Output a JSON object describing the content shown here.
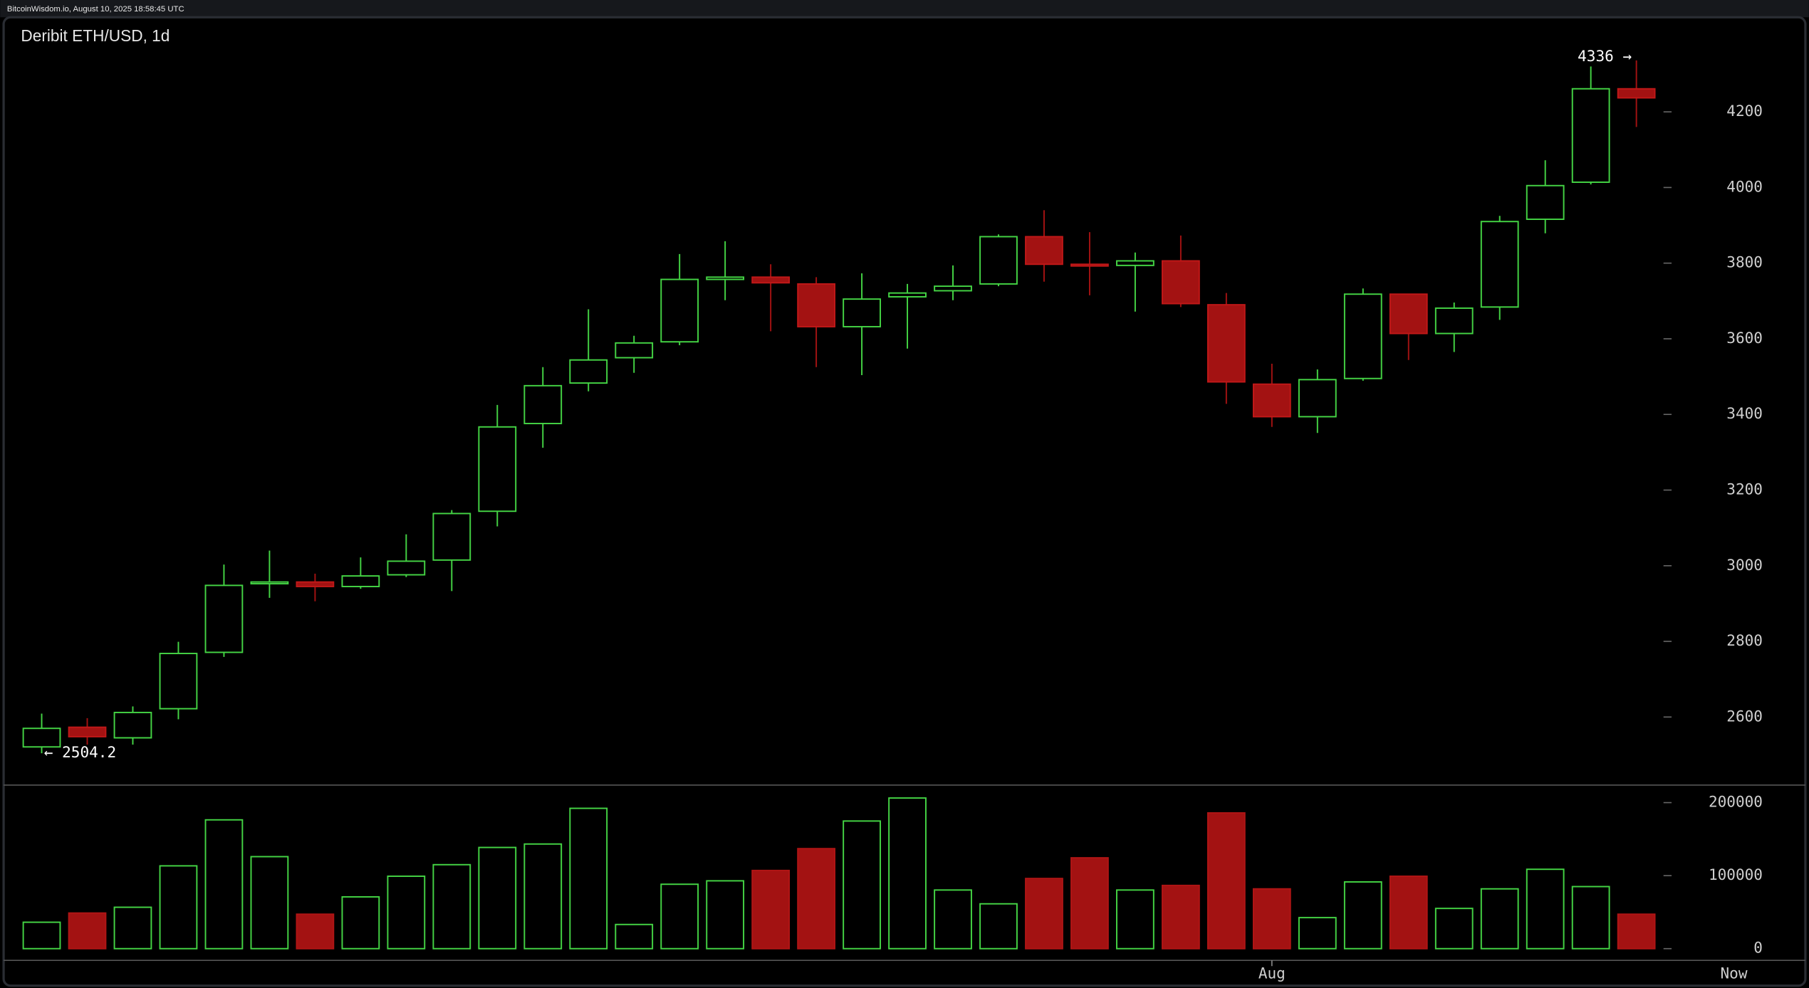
{
  "header": "BitcoinWisdom.io, August 10, 2025 18:58:45 UTC",
  "chart_data": [
    {
      "type": "candlestick",
      "title": "Deribit ETH/USD, 1d",
      "categories": [
        null,
        null,
        null,
        null,
        null,
        null,
        null,
        null,
        null,
        null,
        null,
        null,
        null,
        null,
        null,
        null,
        null,
        null,
        null,
        null,
        null,
        null,
        null,
        null,
        null,
        null,
        null,
        "Aug",
        null,
        null,
        null,
        null,
        null,
        null,
        null,
        null
      ],
      "x_end_label": "Now",
      "open": [
        2521,
        2573,
        2545,
        2622,
        2771,
        2954,
        2957,
        2945,
        2976,
        3015,
        3144,
        3376,
        3483,
        3550,
        3592,
        3757,
        3763,
        3745,
        3632,
        3711,
        3727,
        3745,
        3870,
        3797,
        3794,
        3806,
        3690,
        3480,
        3394,
        3495,
        3718,
        3614,
        3684,
        3916,
        4014,
        4261
      ],
      "high": [
        2609,
        2597,
        2628,
        2799,
        3003,
        3040,
        2979,
        3022,
        3083,
        3147,
        3425,
        3525,
        3678,
        3608,
        3824,
        3858,
        3797,
        3763,
        3773,
        3745,
        3794,
        3876,
        3940,
        3882,
        3828,
        3873,
        3721,
        3534,
        3519,
        3733,
        3718,
        3696,
        3925,
        4072,
        4320,
        4336
      ],
      "low": [
        2504.2,
        2527,
        2527,
        2594,
        2759,
        2915,
        2906,
        2939,
        2970,
        2933,
        3104,
        3312,
        3461,
        3510,
        3583,
        3702,
        3620,
        3525,
        3504,
        3574,
        3702,
        3739,
        3751,
        3715,
        3672,
        3684,
        3428,
        3367,
        3351,
        3489,
        3544,
        3565,
        3650,
        3879,
        4008,
        4160
      ],
      "close": [
        2570,
        2548,
        2612,
        2768,
        2948,
        2957,
        2945,
        2973,
        3012,
        3138,
        3367,
        3476,
        3544,
        3589,
        3757,
        3763,
        3748,
        3632,
        3705,
        3721,
        3739,
        3870,
        3797,
        3794,
        3806,
        3693,
        3486,
        3394,
        3492,
        3718,
        3614,
        3681,
        3910,
        4005,
        4261,
        4237
      ],
      "up_color": "#44d444",
      "down_color": "#a31212",
      "ylim": [
        2420,
        4450
      ],
      "yticks": [
        2600,
        2800,
        3000,
        3200,
        3400,
        3600,
        3800,
        4000,
        4200
      ],
      "annotations": [
        {
          "value": 4336,
          "label": "4336 →"
        },
        {
          "value": 2504.2,
          "label": "← 2504.2"
        }
      ]
    },
    {
      "type": "volume",
      "values": [
        36200,
        48800,
        56700,
        113400,
        176400,
        126000,
        47200,
        70900,
        99200,
        115000,
        138600,
        143300,
        192200,
        33100,
        88200,
        92900,
        107100,
        137000,
        174800,
        206300,
        80300,
        61400,
        96100,
        124400,
        80300,
        86600,
        185900,
        81900,
        42500,
        91400,
        99200,
        55100,
        81900,
        108700,
        85000,
        47200
      ],
      "ylim": [
        -16000,
        224000
      ],
      "yticks": [
        0,
        100000,
        200000
      ]
    }
  ]
}
